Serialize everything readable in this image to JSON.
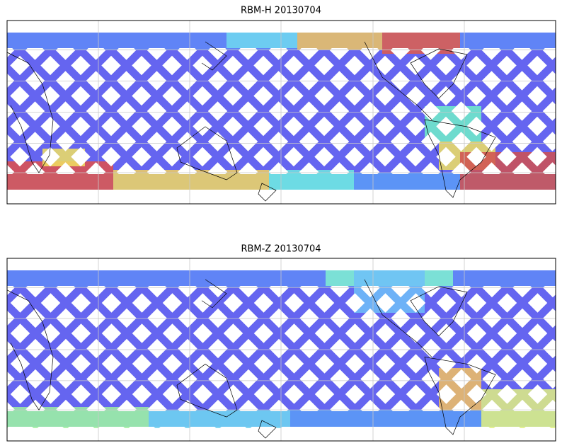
{
  "panels": [
    {
      "title": "RBM-H 20130704"
    },
    {
      "title": "RBM-Z 20130704"
    }
  ]
}
